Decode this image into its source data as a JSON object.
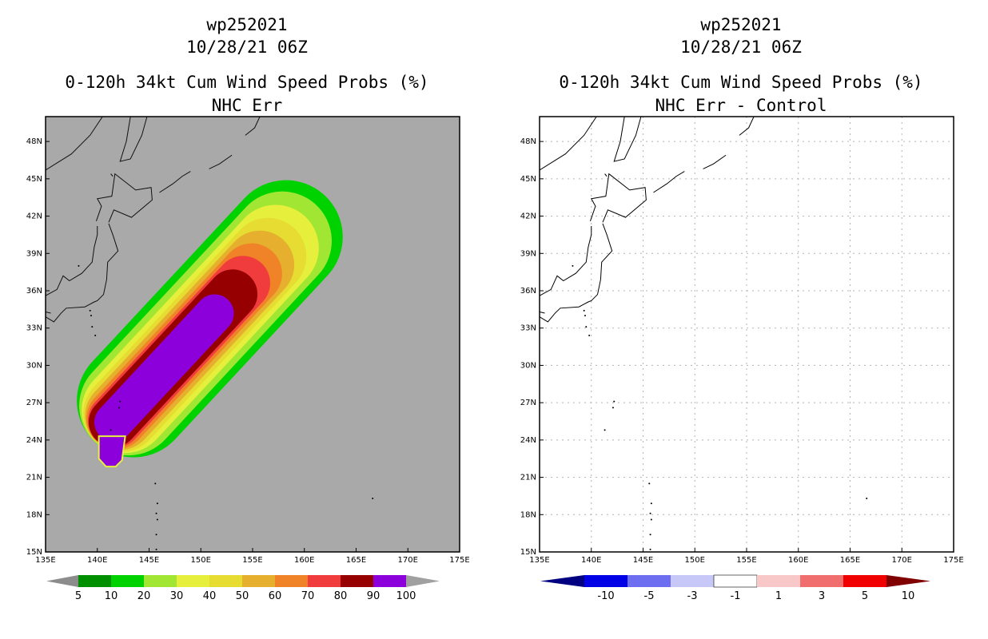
{
  "chart_data": [
    {
      "type": "heatmap",
      "storm_id": "wp252021",
      "datetime": "10/28/21 06Z",
      "title": "0-120h 34kt Cum Wind Speed Probs (%)",
      "subtitle": "NHC Err",
      "xlabel": "",
      "ylabel": "",
      "x_ticks": [
        "135E",
        "140E",
        "145E",
        "150E",
        "155E",
        "160E",
        "165E",
        "170E",
        "175E"
      ],
      "y_ticks": [
        "15N",
        "18N",
        "21N",
        "24N",
        "27N",
        "30N",
        "33N",
        "36N",
        "39N",
        "42N",
        "45N",
        "48N"
      ],
      "xlim": [
        135,
        175
      ],
      "ylim": [
        15,
        50
      ],
      "grid": false,
      "colorbar": {
        "labels": [
          "5",
          "10",
          "20",
          "30",
          "40",
          "50",
          "60",
          "70",
          "80",
          "90",
          "100"
        ],
        "colors": [
          "#8c8c8c",
          "#008f00",
          "#00d200",
          "#a0e632",
          "#e6f03c",
          "#e6dc32",
          "#e6af2d",
          "#f08228",
          "#f03c3c",
          "#960000",
          "#8c00dc",
          "#a0a0a0"
        ]
      },
      "field": {
        "background": "#a9a9a9",
        "axis_start": [
          140.3,
          24.3
        ],
        "axis_end": [
          152.6,
          35.3
        ],
        "max_probability": 100
      }
    },
    {
      "type": "heatmap",
      "storm_id": "wp252021",
      "datetime": "10/28/21 06Z",
      "title": "0-120h 34kt Cum Wind Speed Probs (%)",
      "subtitle": "NHC Err - Control",
      "x_ticks": [
        "135E",
        "140E",
        "145E",
        "150E",
        "155E",
        "160E",
        "165E",
        "170E",
        "175E"
      ],
      "y_ticks": [
        "15N",
        "18N",
        "21N",
        "24N",
        "27N",
        "30N",
        "33N",
        "36N",
        "39N",
        "42N",
        "45N",
        "48N"
      ],
      "xlim": [
        135,
        175
      ],
      "ylim": [
        15,
        50
      ],
      "grid": true,
      "colorbar": {
        "labels": [
          "-10",
          "-5",
          "-3",
          "-1",
          "1",
          "3",
          "5",
          "10"
        ],
        "colors": [
          "#000080",
          "#0000e6",
          "#6e6ef0",
          "#c8c8f8",
          "#ffffff",
          "#f8c8c8",
          "#f06e6e",
          "#f00000",
          "#800000"
        ]
      },
      "field": {
        "background": "#ffffff",
        "all_values_between": [
          -1,
          1
        ]
      }
    }
  ]
}
